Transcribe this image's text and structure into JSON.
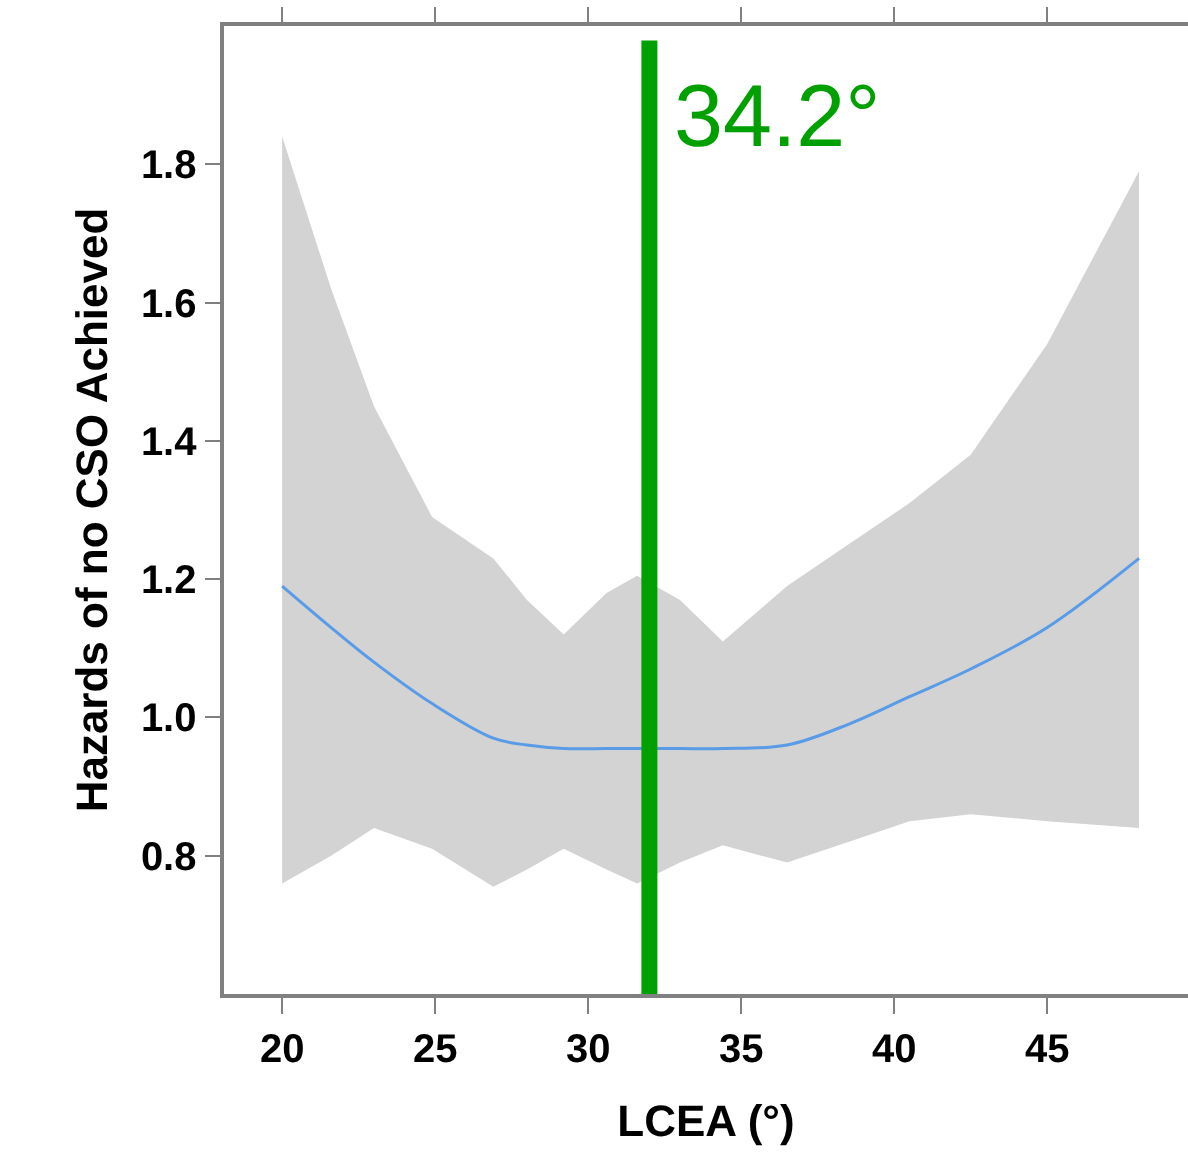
{
  "chart_data": {
    "type": "line",
    "xlabel": "LCEA (°)",
    "ylabel": "Hazards of no CSO Achieved",
    "x": [
      20,
      21.6,
      23,
      24.9,
      26.9,
      28,
      29.2,
      30.6,
      31.6,
      33,
      34.4,
      36.5,
      38.5,
      40.5,
      42.5,
      45,
      48
    ],
    "series": [
      {
        "color": "#5a9be8",
        "values": [
          1.19,
          1.13,
          1.08,
          1.02,
          0.97,
          0.96,
          0.955,
          0.955,
          0.955,
          0.955,
          0.955,
          0.96,
          0.99,
          1.03,
          1.07,
          1.13,
          1.23
        ],
        "upper": [
          1.84,
          1.62,
          1.45,
          1.29,
          1.23,
          1.17,
          1.12,
          1.18,
          1.205,
          1.17,
          1.11,
          1.19,
          1.25,
          1.31,
          1.38,
          1.54,
          1.79
        ],
        "lower": [
          0.76,
          0.8,
          0.84,
          0.81,
          0.755,
          0.78,
          0.81,
          0.78,
          0.76,
          0.79,
          0.815,
          0.79,
          0.82,
          0.85,
          0.86,
          0.85,
          0.84
        ]
      }
    ],
    "xlim": [
      18.1,
      49.6
    ],
    "xticks": [
      20,
      25,
      30,
      35,
      40,
      45
    ],
    "ylim": [
      0.6,
      2.0
    ],
    "yticks": [
      {
        "value": 0.8,
        "label": "0.8"
      },
      {
        "value": 1.0,
        "label": "1.0"
      },
      {
        "value": 1.2,
        "label": "1.2"
      },
      {
        "value": 1.4,
        "label": "1.4"
      },
      {
        "value": 1.6,
        "label": "1.6"
      },
      {
        "value": 1.8,
        "label": "1.8"
      }
    ],
    "ref_lines": [
      {
        "axis": "x",
        "value": 32,
        "color": "#00a000"
      }
    ],
    "annotations": [
      "34.2°"
    ],
    "marker": "none",
    "line_style": "solid"
  }
}
